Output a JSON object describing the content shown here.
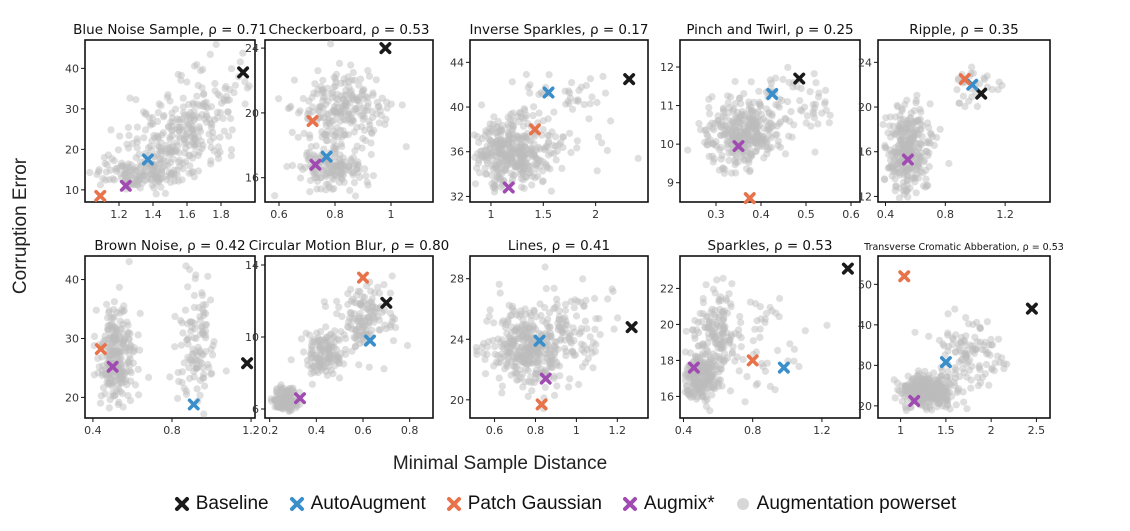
{
  "figure": {
    "ylabel": "Corruption Error",
    "xlabel": "Minimal Sample Distance",
    "colors": {
      "Baseline": "#1a1a1a",
      "AutoAugment": "#3a8fcb",
      "Patch Gaussian": "#e8734a",
      "Augmix*": "#a04bb2",
      "Augmentation powerset": "#bdbdbd"
    },
    "legend": [
      {
        "label": "Baseline",
        "marker": "x-icon",
        "color": "#1a1a1a"
      },
      {
        "label": "AutoAugment",
        "marker": "x-icon",
        "color": "#3a8fcb"
      },
      {
        "label": "Patch Gaussian",
        "marker": "x-icon",
        "color": "#e8734a"
      },
      {
        "label": "Augmix*",
        "marker": "x-icon",
        "color": "#a04bb2"
      },
      {
        "label": "Augmentation powerset",
        "marker": "dot-icon",
        "color": "#bdbdbd"
      }
    ]
  },
  "chart_data": [
    {
      "type": "scatter",
      "title": "Blue Noise Sample, ρ = 0.71",
      "xlim": [
        1.0,
        2.0
      ],
      "ylim": [
        7,
        47
      ],
      "xticks": [
        1.2,
        1.4,
        1.6,
        1.8
      ],
      "yticks": [
        10,
        20,
        30,
        40
      ],
      "cloud": [
        {
          "cx": 1.3,
          "cy": 14,
          "sx": 0.12,
          "sy": 2,
          "n": 140
        },
        {
          "cx": 1.55,
          "cy": 23,
          "sx": 0.15,
          "sy": 5,
          "n": 220
        },
        {
          "cx": 1.75,
          "cy": 33,
          "sx": 0.12,
          "sy": 5,
          "n": 60
        }
      ],
      "markers": {
        "Baseline": [
          1.93,
          39
        ],
        "AutoAugment": [
          1.37,
          17.5
        ],
        "Patch Gaussian": [
          1.09,
          8.5
        ],
        "Augmix*": [
          1.24,
          11
        ]
      }
    },
    {
      "type": "scatter",
      "title": "Checkerboard, ρ = 0.53",
      "xlim": [
        0.55,
        1.15
      ],
      "ylim": [
        14.5,
        24.5
      ],
      "xticks": [
        0.6,
        0.8,
        1.0
      ],
      "yticks": [
        16,
        20,
        24
      ],
      "cloud": [
        {
          "cx": 0.78,
          "cy": 16.5,
          "sx": 0.06,
          "sy": 0.6,
          "n": 150
        },
        {
          "cx": 0.82,
          "cy": 20.2,
          "sx": 0.08,
          "sy": 1.1,
          "n": 230
        }
      ],
      "markers": {
        "Baseline": [
          0.98,
          24
        ],
        "AutoAugment": [
          0.77,
          17.3
        ],
        "Patch Gaussian": [
          0.72,
          19.5
        ],
        "Augmix*": [
          0.73,
          16.8
        ]
      }
    },
    {
      "type": "scatter",
      "title": "Inverse Sparkles, ρ = 0.17",
      "xlim": [
        0.8,
        2.5
      ],
      "ylim": [
        31.5,
        46
      ],
      "xticks": [
        1.0,
        1.5,
        2.0
      ],
      "yticks": [
        32,
        36,
        40,
        44
      ],
      "cloud": [
        {
          "cx": 1.2,
          "cy": 36,
          "sx": 0.18,
          "sy": 1.5,
          "n": 360
        },
        {
          "cx": 1.7,
          "cy": 40,
          "sx": 0.25,
          "sy": 2.3,
          "n": 60
        }
      ],
      "markers": {
        "Baseline": [
          2.32,
          42.5
        ],
        "AutoAugment": [
          1.55,
          41.3
        ],
        "Patch Gaussian": [
          1.42,
          38
        ],
        "Augmix*": [
          1.17,
          32.8
        ]
      }
    },
    {
      "type": "scatter",
      "title": "Pinch and Twirl, ρ = 0.25",
      "xlim": [
        0.22,
        0.62
      ],
      "ylim": [
        8.5,
        12.7
      ],
      "xticks": [
        0.3,
        0.4,
        0.5,
        0.6
      ],
      "yticks": [
        9,
        10,
        11,
        12
      ],
      "cloud": [
        {
          "cx": 0.36,
          "cy": 10.3,
          "sx": 0.045,
          "sy": 0.45,
          "n": 340
        },
        {
          "cx": 0.48,
          "cy": 11.1,
          "sx": 0.05,
          "sy": 0.4,
          "n": 50
        }
      ],
      "markers": {
        "Baseline": [
          0.485,
          11.7
        ],
        "AutoAugment": [
          0.425,
          11.3
        ],
        "Patch Gaussian": [
          0.375,
          8.6
        ],
        "Augmix*": [
          0.35,
          9.95
        ]
      }
    },
    {
      "type": "scatter",
      "title": "Ripple, ρ = 0.35",
      "xlim": [
        0.35,
        1.5
      ],
      "ylim": [
        11.5,
        26
      ],
      "xticks": [
        0.4,
        0.8,
        1.2
      ],
      "yticks": [
        12,
        16,
        20,
        24
      ],
      "cloud": [
        {
          "cx": 0.55,
          "cy": 16,
          "sx": 0.07,
          "sy": 2.0,
          "n": 300
        },
        {
          "cx": 1.0,
          "cy": 22,
          "sx": 0.08,
          "sy": 1.0,
          "n": 30
        }
      ],
      "markers": {
        "Baseline": [
          1.04,
          21.2
        ],
        "AutoAugment": [
          0.98,
          22
        ],
        "Patch Gaussian": [
          0.93,
          22.5
        ],
        "Augmix*": [
          0.55,
          15.3
        ]
      }
    },
    {
      "type": "scatter",
      "title": "Brown Noise, ρ = 0.42",
      "xlim": [
        0.36,
        1.22
      ],
      "ylim": [
        16.5,
        44
      ],
      "xticks": [
        0.4,
        0.8,
        1.2
      ],
      "yticks": [
        20,
        30,
        40
      ],
      "cloud": [
        {
          "cx": 0.52,
          "cy": 27,
          "sx": 0.05,
          "sy": 4,
          "n": 240
        },
        {
          "cx": 0.92,
          "cy": 29,
          "sx": 0.05,
          "sy": 5,
          "n": 110
        }
      ],
      "markers": {
        "Baseline": [
          1.18,
          25.8
        ],
        "AutoAugment": [
          0.91,
          18.8
        ],
        "Patch Gaussian": [
          0.44,
          28.2
        ],
        "Augmix*": [
          0.5,
          25.2
        ]
      }
    },
    {
      "type": "scatter",
      "title": "Circular Motion Blur, ρ = 0.80",
      "xlim": [
        0.18,
        0.9
      ],
      "ylim": [
        5.5,
        14.5
      ],
      "xticks": [
        0.2,
        0.4,
        0.6,
        0.8
      ],
      "yticks": [
        6,
        10,
        14
      ],
      "cloud": [
        {
          "cx": 0.27,
          "cy": 6.5,
          "sx": 0.025,
          "sy": 0.35,
          "n": 150
        },
        {
          "cx": 0.43,
          "cy": 9.0,
          "sx": 0.04,
          "sy": 0.7,
          "n": 130
        },
        {
          "cx": 0.6,
          "cy": 11.0,
          "sx": 0.06,
          "sy": 0.9,
          "n": 140
        }
      ],
      "markers": {
        "Baseline": [
          0.7,
          11.9
        ],
        "AutoAugment": [
          0.63,
          9.8
        ],
        "Patch Gaussian": [
          0.6,
          13.3
        ],
        "Augmix*": [
          0.33,
          6.6
        ]
      }
    },
    {
      "type": "scatter",
      "title": "Lines, ρ = 0.41",
      "xlim": [
        0.48,
        1.35
      ],
      "ylim": [
        18.8,
        29.5
      ],
      "xticks": [
        0.6,
        0.8,
        1.0,
        1.2
      ],
      "yticks": [
        20,
        24,
        28
      ],
      "cloud": [
        {
          "cx": 0.78,
          "cy": 23.5,
          "sx": 0.1,
          "sy": 1.3,
          "n": 360
        },
        {
          "cx": 1.0,
          "cy": 25,
          "sx": 0.1,
          "sy": 1.3,
          "n": 60
        }
      ],
      "markers": {
        "Baseline": [
          1.27,
          24.8
        ],
        "AutoAugment": [
          0.82,
          23.9
        ],
        "Patch Gaussian": [
          0.83,
          19.7
        ],
        "Augmix*": [
          0.85,
          21.4
        ]
      }
    },
    {
      "type": "scatter",
      "title": "Sparkles, ρ = 0.53",
      "xlim": [
        0.38,
        1.42
      ],
      "ylim": [
        14.8,
        23.8
      ],
      "xticks": [
        0.4,
        0.8,
        1.2
      ],
      "yticks": [
        16,
        18,
        20,
        22
      ],
      "cloud": [
        {
          "cx": 0.5,
          "cy": 17,
          "sx": 0.05,
          "sy": 0.7,
          "n": 200
        },
        {
          "cx": 0.6,
          "cy": 19.5,
          "sx": 0.06,
          "sy": 1.1,
          "n": 140
        },
        {
          "cx": 0.85,
          "cy": 18.5,
          "sx": 0.15,
          "sy": 1.5,
          "n": 50
        }
      ],
      "markers": {
        "Baseline": [
          1.35,
          23.1
        ],
        "AutoAugment": [
          0.98,
          17.6
        ],
        "Patch Gaussian": [
          0.8,
          18
        ],
        "Augmix*": [
          0.46,
          17.6
        ]
      }
    },
    {
      "type": "scatter",
      "title": "Transverse Cromatic Abberation, ρ = 0.53",
      "xlim": [
        0.75,
        2.65
      ],
      "ylim": [
        17,
        57
      ],
      "xticks": [
        1.0,
        1.5,
        2.0,
        2.5
      ],
      "yticks": [
        20,
        30,
        40,
        50
      ],
      "cloud": [
        {
          "cx": 1.3,
          "cy": 23.5,
          "sx": 0.15,
          "sy": 2,
          "n": 300
        },
        {
          "cx": 1.8,
          "cy": 33,
          "sx": 0.2,
          "sy": 4,
          "n": 110
        }
      ],
      "markers": {
        "Baseline": [
          2.45,
          44
        ],
        "AutoAugment": [
          1.5,
          30.8
        ],
        "Patch Gaussian": [
          1.04,
          52
        ],
        "Augmix*": [
          1.15,
          21.2
        ]
      }
    }
  ]
}
